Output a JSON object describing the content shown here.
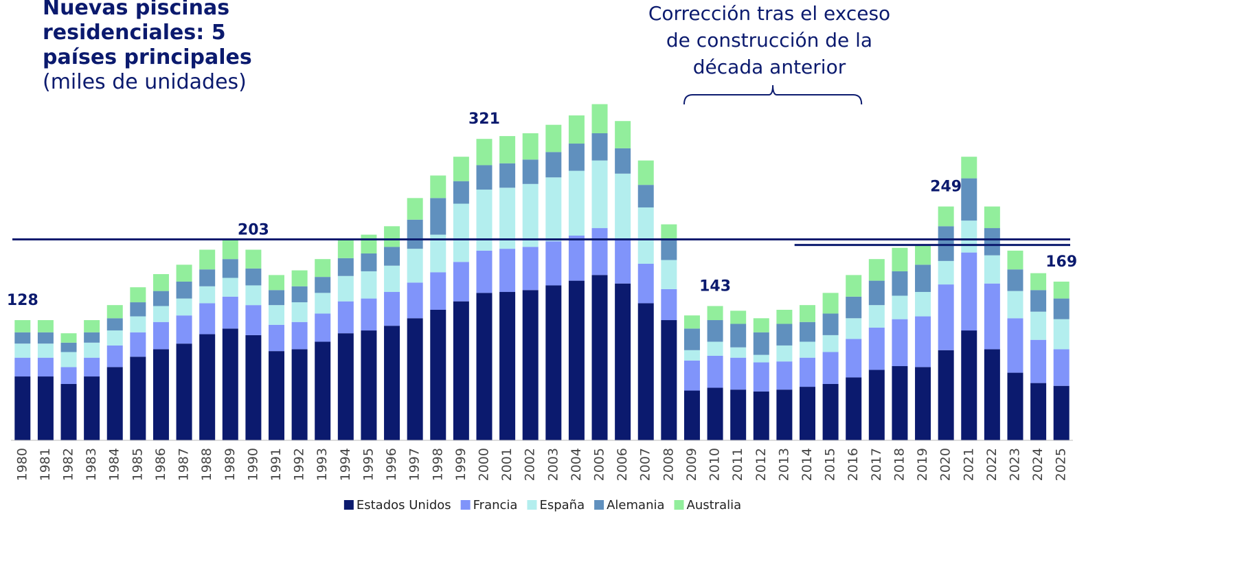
{
  "chart_data": {
    "type": "stacked_bar",
    "title": "Nuevas piscinas residenciales: 5 países principales",
    "subtitle": "(miles de unidades)",
    "categories": [
      "1980",
      "1981",
      "1982",
      "1983",
      "1984",
      "1985",
      "1986",
      "1987",
      "1988",
      "1989",
      "1990",
      "1991",
      "1992",
      "1993",
      "1994",
      "1995",
      "1996",
      "1997",
      "1998",
      "1999",
      "2000",
      "2001",
      "2002",
      "2003",
      "2004",
      "2005",
      "2006",
      "2007",
      "2008",
      "2009",
      "2010",
      "2011",
      "2012",
      "2013",
      "2014",
      "2015",
      "2016",
      "2017",
      "2018",
      "2019",
      "2020",
      "2021",
      "2022",
      "2023",
      "2024",
      "2025"
    ],
    "series": [
      {
        "name": "Estados Unidos",
        "color": "#0b1a6e",
        "values": [
          68,
          68,
          60,
          68,
          78,
          89,
          97,
          103,
          113,
          119,
          112,
          95,
          97,
          105,
          114,
          117,
          122,
          130,
          139,
          148,
          157,
          158,
          160,
          165,
          170,
          176,
          167,
          146,
          128,
          53,
          56,
          54,
          52,
          54,
          57,
          60,
          67,
          75,
          79,
          78,
          96,
          117,
          97,
          72,
          61,
          58
        ]
      },
      {
        "name": "Francia",
        "color": "#8094fa",
        "values": [
          20,
          20,
          18,
          20,
          23,
          26,
          29,
          30,
          33,
          34,
          32,
          28,
          29,
          30,
          34,
          34,
          36,
          38,
          40,
          42,
          45,
          46,
          46,
          47,
          48,
          50,
          48,
          42,
          33,
          32,
          34,
          34,
          31,
          30,
          31,
          34,
          41,
          45,
          50,
          54,
          70,
          83,
          70,
          58,
          46,
          39
        ]
      },
      {
        "name": "España",
        "color": "#b3eeee",
        "values": [
          15,
          15,
          16,
          16,
          16,
          17,
          17,
          18,
          18,
          20,
          21,
          21,
          21,
          22,
          27,
          29,
          28,
          36,
          40,
          62,
          65,
          65,
          67,
          68,
          69,
          72,
          69,
          60,
          31,
          11,
          15,
          11,
          8,
          17,
          17,
          18,
          22,
          24,
          25,
          26,
          25,
          34,
          30,
          29,
          30,
          32
        ]
      },
      {
        "name": "Alemania",
        "color": "#6090be",
        "values": [
          12,
          12,
          10,
          11,
          13,
          15,
          16,
          18,
          18,
          20,
          18,
          16,
          17,
          17,
          19,
          19,
          20,
          31,
          39,
          24,
          26,
          26,
          26,
          27,
          29,
          29,
          27,
          24,
          22,
          23,
          23,
          25,
          24,
          23,
          21,
          23,
          23,
          26,
          26,
          29,
          37,
          45,
          29,
          23,
          23,
          22
        ]
      },
      {
        "name": "Australia",
        "color": "#92ee9c",
        "values": [
          13,
          13,
          10,
          13,
          14,
          16,
          18,
          18,
          21,
          20,
          20,
          16,
          17,
          19,
          19,
          20,
          22,
          23,
          24,
          26,
          28,
          29,
          28,
          29,
          30,
          31,
          29,
          26,
          16,
          14,
          15,
          14,
          15,
          15,
          18,
          22,
          23,
          23,
          25,
          20,
          21,
          23,
          23,
          20,
          18,
          18
        ]
      }
    ],
    "annotations": [
      {
        "text": "128",
        "category": "1980"
      },
      {
        "text": "203",
        "category": "1990"
      },
      {
        "text": "321",
        "category": "2000"
      },
      {
        "text": "143",
        "category": "2010"
      },
      {
        "text": "249",
        "category": "2020"
      },
      {
        "text": "169",
        "category": "2025"
      }
    ],
    "reference_lines": [
      {
        "value": 214,
        "from": "1980"
      },
      {
        "value": 208,
        "from": "2014"
      }
    ],
    "callout": {
      "text": "Corrección tras el exceso de construcción de la década anterior",
      "from": "2009",
      "to": "2016"
    },
    "ylim": [
      0,
      480
    ],
    "legend": "bottom"
  }
}
